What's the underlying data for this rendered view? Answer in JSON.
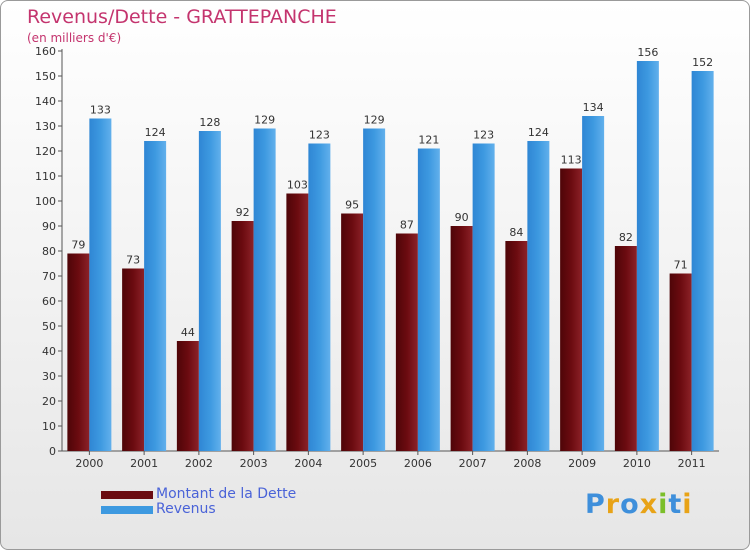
{
  "title": "Revenus/Dette - GRATTEPANCHE",
  "subtitle": "(en milliers d'€)",
  "colors": {
    "dette": "#6b0b10",
    "revenus": "#3d99e0",
    "title": "#c4346e",
    "legend_text": "#4a63d8"
  },
  "legend": [
    {
      "label": "Montant de la Dette",
      "color": "#6b0b10"
    },
    {
      "label": "Revenus",
      "color": "#3d99e0"
    }
  ],
  "logo": {
    "text": "Proxiti",
    "letters": [
      {
        "ch": "P",
        "color": "#3e8fdb"
      },
      {
        "ch": "r",
        "color": "#e8a317"
      },
      {
        "ch": "o",
        "color": "#3e8fdb"
      },
      {
        "ch": "x",
        "color": "#e8a317"
      },
      {
        "ch": "i",
        "color": "#7bbf2a"
      },
      {
        "ch": "t",
        "color": "#3e8fdb"
      },
      {
        "ch": "i",
        "color": "#e8a317"
      }
    ]
  },
  "chart_data": {
    "type": "bar",
    "categories": [
      "2000",
      "2001",
      "2002",
      "2003",
      "2004",
      "2005",
      "2006",
      "2007",
      "2008",
      "2009",
      "2010",
      "2011"
    ],
    "series": [
      {
        "name": "Montant de la Dette",
        "values": [
          79,
          73,
          44,
          92,
          103,
          95,
          87,
          90,
          84,
          113,
          82,
          71
        ]
      },
      {
        "name": "Revenus",
        "values": [
          133,
          124,
          128,
          129,
          123,
          129,
          121,
          123,
          124,
          134,
          156,
          152
        ]
      }
    ],
    "ylim": [
      0,
      160
    ],
    "yticks": [
      0,
      10,
      20,
      30,
      40,
      50,
      60,
      70,
      80,
      90,
      100,
      110,
      120,
      130,
      140,
      150,
      160
    ],
    "grid": false,
    "legend_position": "bottom-left"
  }
}
